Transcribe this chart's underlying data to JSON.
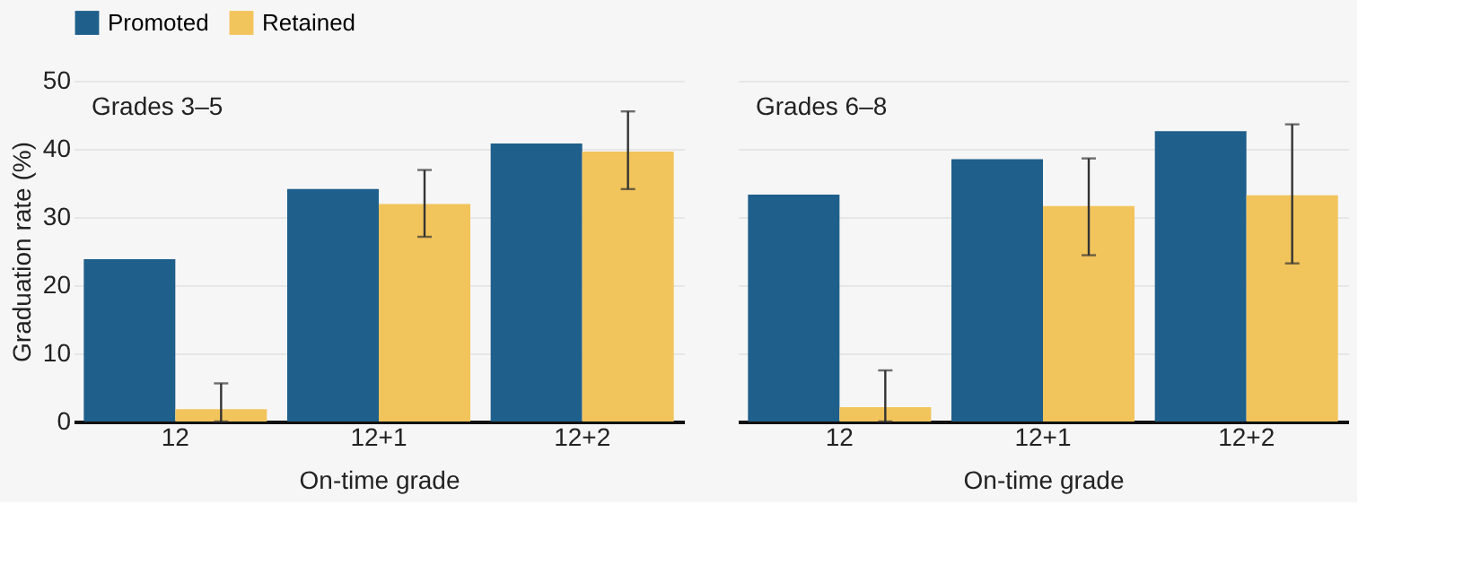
{
  "chart_data": [
    {
      "type": "bar",
      "title": "Grades 3–5",
      "xlabel": "On-time grade",
      "ylabel": "Graduation rate (%)",
      "categories": [
        "12",
        "12+1",
        "12+2"
      ],
      "series": [
        {
          "name": "Promoted",
          "color": "#1f5f8b",
          "values": [
            23.8,
            34.1,
            40.8
          ]
        },
        {
          "name": "Retained",
          "color": "#f2c45c",
          "values": [
            1.8,
            31.9,
            39.6
          ],
          "errors": [
            [
              0,
              5.6
            ],
            [
              27.1,
              36.9
            ],
            [
              34.1,
              45.5
            ]
          ]
        }
      ],
      "ylim": [
        0,
        50
      ],
      "yticks": [
        0,
        10,
        20,
        30,
        40,
        50
      ],
      "grid": "y",
      "legend": "top"
    },
    {
      "type": "bar",
      "title": "Grades 6–8",
      "xlabel": "On-time grade",
      "categories": [
        "12",
        "12+1",
        "12+2"
      ],
      "series": [
        {
          "name": "Promoted",
          "color": "#1f5f8b",
          "values": [
            33.3,
            38.5,
            42.6
          ]
        },
        {
          "name": "Retained",
          "color": "#f2c45c",
          "values": [
            2.1,
            31.6,
            33.2
          ],
          "errors": [
            [
              0,
              7.5
            ],
            [
              24.4,
              38.6
            ],
            [
              23.2,
              43.6
            ]
          ]
        }
      ],
      "ylim": [
        0,
        50
      ],
      "yticks": [
        0,
        10,
        20,
        30,
        40,
        50
      ],
      "grid": "y",
      "legend": "top",
      "tick_labels": "x"
    }
  ]
}
